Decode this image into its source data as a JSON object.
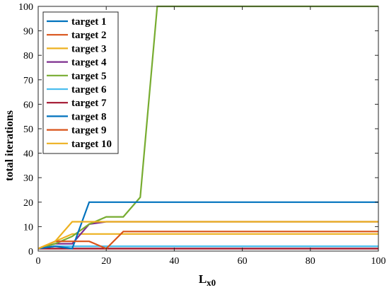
{
  "chart_data": {
    "type": "line",
    "xlabel_main": "L",
    "xlabel_sub": "x0",
    "ylabel": "total iterations",
    "xlim": [
      0,
      100
    ],
    "ylim": [
      0,
      100
    ],
    "x_ticks": [
      0,
      20,
      40,
      60,
      80,
      100
    ],
    "y_ticks": [
      0,
      10,
      20,
      30,
      40,
      50,
      60,
      70,
      80,
      90,
      100
    ],
    "grid": false,
    "legend_position": "top-left",
    "series": [
      {
        "name": "target 1",
        "color": "#0072BD",
        "points": [
          [
            0,
            1
          ],
          [
            5,
            2
          ],
          [
            100,
            2
          ]
        ]
      },
      {
        "name": "target 2",
        "color": "#D95319",
        "points": [
          [
            0,
            1
          ],
          [
            5,
            1
          ],
          [
            100,
            1
          ]
        ]
      },
      {
        "name": "target 3",
        "color": "#EDB120",
        "points": [
          [
            0,
            1
          ],
          [
            5,
            4
          ],
          [
            10,
            7
          ],
          [
            100,
            7
          ]
        ]
      },
      {
        "name": "target 4",
        "color": "#7E2F8E",
        "points": [
          [
            0,
            1
          ],
          [
            5,
            3
          ],
          [
            10,
            3
          ],
          [
            15,
            11
          ],
          [
            20,
            12
          ],
          [
            100,
            12
          ]
        ]
      },
      {
        "name": "target 5",
        "color": "#77AC30",
        "points": [
          [
            0,
            1
          ],
          [
            5,
            3
          ],
          [
            10,
            6
          ],
          [
            15,
            11
          ],
          [
            20,
            14
          ],
          [
            25,
            14
          ],
          [
            30,
            22
          ],
          [
            35,
            100
          ],
          [
            100,
            100
          ]
        ]
      },
      {
        "name": "target 6",
        "color": "#4DBEEE",
        "points": [
          [
            0,
            1
          ],
          [
            5,
            2
          ],
          [
            100,
            2
          ]
        ]
      },
      {
        "name": "target 7",
        "color": "#A2142F",
        "points": [
          [
            0,
            1
          ],
          [
            5,
            1
          ],
          [
            100,
            1
          ]
        ]
      },
      {
        "name": "target 8",
        "color": "#0072BD",
        "points": [
          [
            0,
            1
          ],
          [
            5,
            2
          ],
          [
            10,
            1
          ],
          [
            15,
            20
          ],
          [
            100,
            20
          ]
        ]
      },
      {
        "name": "target 9",
        "color": "#D95319",
        "points": [
          [
            0,
            1
          ],
          [
            5,
            4
          ],
          [
            10,
            4
          ],
          [
            15,
            4
          ],
          [
            20,
            1
          ],
          [
            25,
            8
          ],
          [
            100,
            8
          ]
        ]
      },
      {
        "name": "target 10",
        "color": "#EDB120",
        "points": [
          [
            0,
            1
          ],
          [
            5,
            4
          ],
          [
            10,
            12
          ],
          [
            100,
            12
          ]
        ]
      }
    ]
  }
}
